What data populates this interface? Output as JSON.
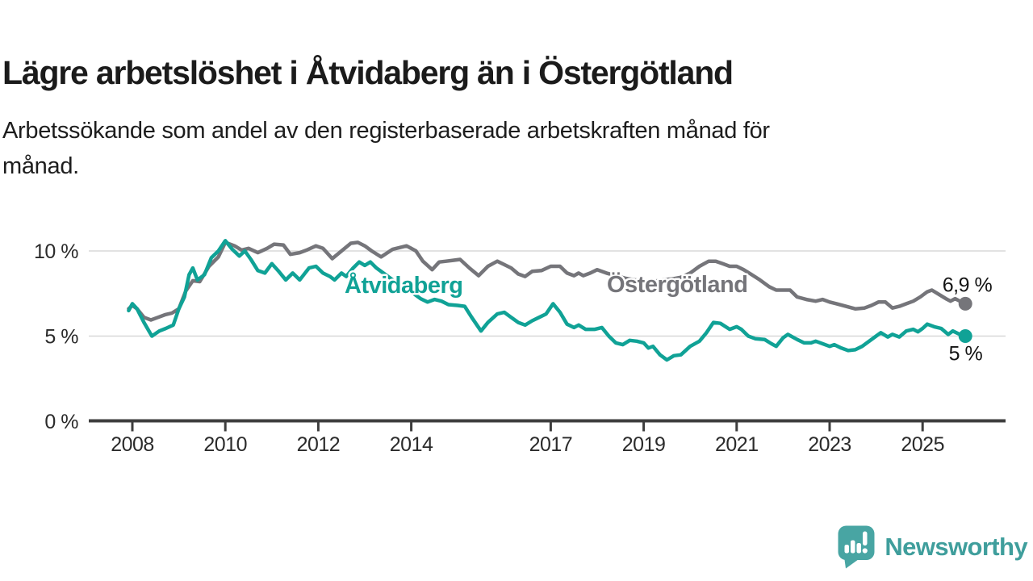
{
  "header": {
    "title": "Lägre arbetslöshet i Åtvidaberg än i Östergötland",
    "subtitle_line1": "Arbetssökande som andel av den registerbaserade arbetskraften månad för",
    "subtitle_line2": "månad."
  },
  "branding": {
    "logo_text": "Newsworthy",
    "logo_color": "#48a5a3",
    "logo_text_color": "#3f9e9c"
  },
  "colors": {
    "accent_teal": "#10a296",
    "accent_gray": "#75757a",
    "grid": "#d8d8d8",
    "axis": "#3d3d3d",
    "text": "#1b1b1b"
  },
  "chart_data": {
    "type": "line",
    "title": "Lägre arbetslöshet i Åtvidaberg än i Östergötland",
    "subtitle": "Arbetssökande som andel av den registerbaserade arbetskraften månad för månad.",
    "unit": "%",
    "grid": true,
    "legend_position": "inline-labels",
    "x_axis": {
      "ticks": [
        2008,
        2010,
        2012,
        2014,
        2017,
        2019,
        2021,
        2023,
        2025
      ],
      "range": [
        2007.9,
        2026.8
      ]
    },
    "y_axis": {
      "ticks": [
        {
          "value": 0,
          "label": "0 %"
        },
        {
          "value": 5,
          "label": "5 %"
        },
        {
          "value": 10,
          "label": "10 %"
        }
      ],
      "ylim": [
        0,
        11.5
      ]
    },
    "series": [
      {
        "name": "Östergötland",
        "color": "#75757a",
        "end_label": "6,9 %",
        "end_value": 6.9,
        "points": [
          [
            2007.92,
            6.6
          ],
          [
            2008.0,
            6.8
          ],
          [
            2008.1,
            6.6
          ],
          [
            2008.25,
            6.1
          ],
          [
            2008.4,
            5.95
          ],
          [
            2008.55,
            6.1
          ],
          [
            2008.7,
            6.25
          ],
          [
            2008.85,
            6.35
          ],
          [
            2009.0,
            6.6
          ],
          [
            2009.15,
            7.65
          ],
          [
            2009.3,
            8.25
          ],
          [
            2009.45,
            8.2
          ],
          [
            2009.65,
            9.1
          ],
          [
            2009.85,
            9.65
          ],
          [
            2010.0,
            10.5
          ],
          [
            2010.2,
            10.3
          ],
          [
            2010.35,
            10.05
          ],
          [
            2010.5,
            10.15
          ],
          [
            2010.7,
            9.9
          ],
          [
            2010.9,
            10.15
          ],
          [
            2011.05,
            10.4
          ],
          [
            2011.25,
            10.35
          ],
          [
            2011.4,
            9.8
          ],
          [
            2011.6,
            9.9
          ],
          [
            2011.75,
            10.05
          ],
          [
            2011.95,
            10.3
          ],
          [
            2012.1,
            10.15
          ],
          [
            2012.3,
            9.55
          ],
          [
            2012.5,
            10.0
          ],
          [
            2012.7,
            10.45
          ],
          [
            2012.85,
            10.5
          ],
          [
            2013.0,
            10.3
          ],
          [
            2013.15,
            10.0
          ],
          [
            2013.35,
            9.65
          ],
          [
            2013.6,
            10.1
          ],
          [
            2013.75,
            10.2
          ],
          [
            2013.9,
            10.3
          ],
          [
            2014.1,
            10.0
          ],
          [
            2014.25,
            9.4
          ],
          [
            2014.45,
            8.9
          ],
          [
            2014.6,
            9.35
          ],
          [
            2014.75,
            9.4
          ],
          [
            2014.9,
            9.45
          ],
          [
            2015.05,
            9.5
          ],
          [
            2015.25,
            9.0
          ],
          [
            2015.45,
            8.55
          ],
          [
            2015.65,
            9.1
          ],
          [
            2015.85,
            9.4
          ],
          [
            2016.0,
            9.2
          ],
          [
            2016.15,
            9.0
          ],
          [
            2016.3,
            8.65
          ],
          [
            2016.45,
            8.5
          ],
          [
            2016.6,
            8.8
          ],
          [
            2016.8,
            8.85
          ],
          [
            2017.0,
            9.1
          ],
          [
            2017.2,
            9.1
          ],
          [
            2017.35,
            8.7
          ],
          [
            2017.5,
            8.55
          ],
          [
            2017.6,
            8.7
          ],
          [
            2017.7,
            8.55
          ],
          [
            2017.85,
            8.7
          ],
          [
            2018.0,
            8.9
          ],
          [
            2018.2,
            8.7
          ],
          [
            2018.4,
            8.55
          ],
          [
            2018.6,
            8.4
          ],
          [
            2018.8,
            8.3
          ],
          [
            2019.0,
            8.25
          ],
          [
            2019.2,
            8.2
          ],
          [
            2019.4,
            8.3
          ],
          [
            2019.6,
            8.35
          ],
          [
            2019.8,
            8.45
          ],
          [
            2020.0,
            8.7
          ],
          [
            2020.2,
            9.1
          ],
          [
            2020.4,
            9.4
          ],
          [
            2020.55,
            9.4
          ],
          [
            2020.7,
            9.25
          ],
          [
            2020.85,
            9.1
          ],
          [
            2021.0,
            9.1
          ],
          [
            2021.15,
            8.9
          ],
          [
            2021.3,
            8.65
          ],
          [
            2021.5,
            8.3
          ],
          [
            2021.7,
            7.9
          ],
          [
            2021.85,
            7.7
          ],
          [
            2022.0,
            7.7
          ],
          [
            2022.15,
            7.7
          ],
          [
            2022.3,
            7.3
          ],
          [
            2022.5,
            7.15
          ],
          [
            2022.7,
            7.05
          ],
          [
            2022.85,
            7.15
          ],
          [
            2023.0,
            7.0
          ],
          [
            2023.15,
            6.9
          ],
          [
            2023.35,
            6.75
          ],
          [
            2023.55,
            6.6
          ],
          [
            2023.75,
            6.65
          ],
          [
            2023.9,
            6.8
          ],
          [
            2024.05,
            7.0
          ],
          [
            2024.2,
            7.0
          ],
          [
            2024.35,
            6.65
          ],
          [
            2024.5,
            6.75
          ],
          [
            2024.65,
            6.9
          ],
          [
            2024.8,
            7.05
          ],
          [
            2024.95,
            7.3
          ],
          [
            2025.1,
            7.6
          ],
          [
            2025.2,
            7.7
          ],
          [
            2025.35,
            7.45
          ],
          [
            2025.5,
            7.2
          ],
          [
            2025.6,
            7.05
          ],
          [
            2025.7,
            7.2
          ],
          [
            2025.8,
            7.05
          ],
          [
            2025.92,
            6.9
          ]
        ]
      },
      {
        "name": "Åtvidaberg",
        "color": "#10a296",
        "end_label": "5 %",
        "end_value": 5.0,
        "points": [
          [
            2007.92,
            6.5
          ],
          [
            2008.0,
            6.9
          ],
          [
            2008.1,
            6.6
          ],
          [
            2008.25,
            5.8
          ],
          [
            2008.42,
            5.0
          ],
          [
            2008.58,
            5.3
          ],
          [
            2008.72,
            5.45
          ],
          [
            2008.88,
            5.65
          ],
          [
            2009.0,
            6.6
          ],
          [
            2009.12,
            7.3
          ],
          [
            2009.22,
            8.6
          ],
          [
            2009.3,
            9.0
          ],
          [
            2009.4,
            8.3
          ],
          [
            2009.55,
            8.6
          ],
          [
            2009.7,
            9.6
          ],
          [
            2009.85,
            10.0
          ],
          [
            2010.0,
            10.6
          ],
          [
            2010.15,
            10.1
          ],
          [
            2010.3,
            9.7
          ],
          [
            2010.42,
            10.0
          ],
          [
            2010.55,
            9.5
          ],
          [
            2010.7,
            8.85
          ],
          [
            2010.85,
            8.7
          ],
          [
            2011.0,
            9.25
          ],
          [
            2011.15,
            8.8
          ],
          [
            2011.3,
            8.3
          ],
          [
            2011.45,
            8.7
          ],
          [
            2011.6,
            8.3
          ],
          [
            2011.8,
            9.0
          ],
          [
            2011.95,
            9.1
          ],
          [
            2012.1,
            8.7
          ],
          [
            2012.25,
            8.5
          ],
          [
            2012.35,
            8.3
          ],
          [
            2012.5,
            8.7
          ],
          [
            2012.6,
            8.5
          ],
          [
            2012.75,
            9.0
          ],
          [
            2012.88,
            9.35
          ],
          [
            2013.0,
            9.15
          ],
          [
            2013.12,
            9.35
          ],
          [
            2013.25,
            9.0
          ],
          [
            2013.45,
            8.6
          ],
          [
            2013.65,
            8.2
          ],
          [
            2013.85,
            7.8
          ],
          [
            2014.05,
            7.5
          ],
          [
            2014.2,
            7.2
          ],
          [
            2014.35,
            7.0
          ],
          [
            2014.5,
            7.15
          ],
          [
            2014.65,
            7.05
          ],
          [
            2014.8,
            6.85
          ],
          [
            2015.0,
            6.8
          ],
          [
            2015.15,
            6.75
          ],
          [
            2015.3,
            6.1
          ],
          [
            2015.5,
            5.3
          ],
          [
            2015.65,
            5.8
          ],
          [
            2015.85,
            6.3
          ],
          [
            2016.0,
            6.4
          ],
          [
            2016.15,
            6.1
          ],
          [
            2016.3,
            5.8
          ],
          [
            2016.45,
            5.65
          ],
          [
            2016.6,
            5.9
          ],
          [
            2016.75,
            6.1
          ],
          [
            2016.9,
            6.3
          ],
          [
            2017.05,
            6.9
          ],
          [
            2017.2,
            6.4
          ],
          [
            2017.35,
            5.7
          ],
          [
            2017.5,
            5.5
          ],
          [
            2017.6,
            5.65
          ],
          [
            2017.75,
            5.4
          ],
          [
            2017.95,
            5.4
          ],
          [
            2018.1,
            5.5
          ],
          [
            2018.25,
            5.0
          ],
          [
            2018.4,
            4.6
          ],
          [
            2018.55,
            4.5
          ],
          [
            2018.7,
            4.75
          ],
          [
            2018.85,
            4.7
          ],
          [
            2019.0,
            4.6
          ],
          [
            2019.1,
            4.3
          ],
          [
            2019.2,
            4.4
          ],
          [
            2019.35,
            3.9
          ],
          [
            2019.5,
            3.6
          ],
          [
            2019.65,
            3.85
          ],
          [
            2019.8,
            3.9
          ],
          [
            2020.0,
            4.4
          ],
          [
            2020.2,
            4.7
          ],
          [
            2020.35,
            5.2
          ],
          [
            2020.5,
            5.8
          ],
          [
            2020.65,
            5.75
          ],
          [
            2020.85,
            5.4
          ],
          [
            2021.0,
            5.55
          ],
          [
            2021.1,
            5.4
          ],
          [
            2021.25,
            5.0
          ],
          [
            2021.4,
            4.85
          ],
          [
            2021.6,
            4.8
          ],
          [
            2021.75,
            4.55
          ],
          [
            2021.85,
            4.4
          ],
          [
            2022.0,
            4.9
          ],
          [
            2022.1,
            5.1
          ],
          [
            2022.3,
            4.8
          ],
          [
            2022.45,
            4.6
          ],
          [
            2022.6,
            4.6
          ],
          [
            2022.7,
            4.7
          ],
          [
            2022.85,
            4.55
          ],
          [
            2023.0,
            4.4
          ],
          [
            2023.1,
            4.5
          ],
          [
            2023.25,
            4.3
          ],
          [
            2023.4,
            4.15
          ],
          [
            2023.55,
            4.2
          ],
          [
            2023.7,
            4.4
          ],
          [
            2023.85,
            4.7
          ],
          [
            2024.0,
            5.0
          ],
          [
            2024.1,
            5.2
          ],
          [
            2024.25,
            4.95
          ],
          [
            2024.35,
            5.1
          ],
          [
            2024.5,
            4.95
          ],
          [
            2024.65,
            5.3
          ],
          [
            2024.8,
            5.4
          ],
          [
            2024.9,
            5.25
          ],
          [
            2025.0,
            5.45
          ],
          [
            2025.1,
            5.7
          ],
          [
            2025.25,
            5.55
          ],
          [
            2025.4,
            5.45
          ],
          [
            2025.55,
            5.1
          ],
          [
            2025.65,
            5.3
          ],
          [
            2025.8,
            5.1
          ],
          [
            2025.92,
            5.0
          ]
        ]
      }
    ]
  }
}
